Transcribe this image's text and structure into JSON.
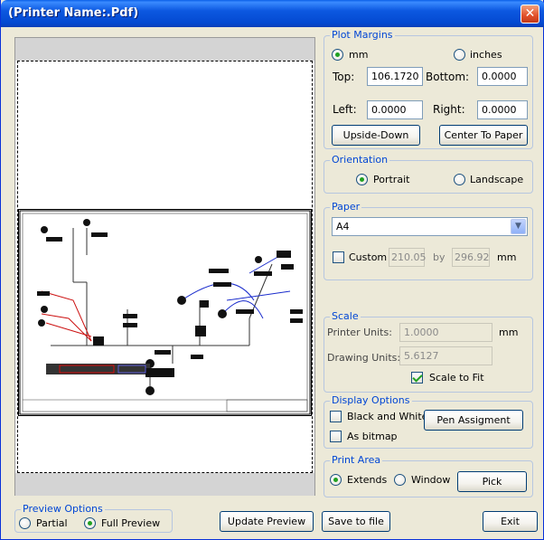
{
  "window": {
    "title": "(Printer Name:.Pdf)",
    "close_glyph": "✕"
  },
  "plot_margins": {
    "legend": "Plot Margins",
    "units": {
      "mm_label": "mm",
      "inches_label": "inches",
      "selected": "mm"
    },
    "top_label": "Top:",
    "top_value": "106.1720",
    "bottom_label": "Bottom:",
    "bottom_value": "0.0000",
    "left_label": "Left:",
    "left_value": "0.0000",
    "right_label": "Right:",
    "right_value": "0.0000",
    "upside_down_label": "Upside-Down",
    "center_label": "Center To Paper"
  },
  "orientation": {
    "legend": "Orientation",
    "portrait_label": "Portrait",
    "landscape_label": "Landscape",
    "selected": "portrait"
  },
  "paper": {
    "legend": "Paper",
    "selected": "A4",
    "custom_label": "Custom",
    "custom_checked": false,
    "width": "210.05",
    "by_label": "by",
    "height": "296.92",
    "unit_label": "mm"
  },
  "scale": {
    "legend": "Scale",
    "printer_units_label": "Printer Units:",
    "printer_units_value": "1.0000",
    "printer_units_unit": "mm",
    "drawing_units_label": "Drawing Units:",
    "drawing_units_value": "5.6127",
    "scale_to_fit_label": "Scale to Fit",
    "scale_to_fit_checked": true
  },
  "display_options": {
    "legend": "Display Options",
    "black_white_label": "Black and White",
    "black_white_checked": false,
    "as_bitmap_label": "As bitmap",
    "as_bitmap_checked": false,
    "pen_assignment_label": "Pen Assigment"
  },
  "print_area": {
    "legend": "Print Area",
    "extends_label": "Extends",
    "window_label": "Window",
    "selected": "extends",
    "pick_label": "Pick"
  },
  "preview_options": {
    "legend": "Preview Options",
    "partial_label": "Partial",
    "full_label": "Full Preview",
    "selected": "full"
  },
  "footer": {
    "update_preview_label": "Update Preview",
    "save_to_file_label": "Save to file",
    "exit_label": "Exit"
  },
  "colors": {
    "title_bar": "#0449d1",
    "legend_text": "#0046d5",
    "radio_dot": "#21a121",
    "close_button": "#e2502a"
  },
  "icons": {
    "close": "close-icon",
    "dropdown": "chevron-down-icon"
  }
}
